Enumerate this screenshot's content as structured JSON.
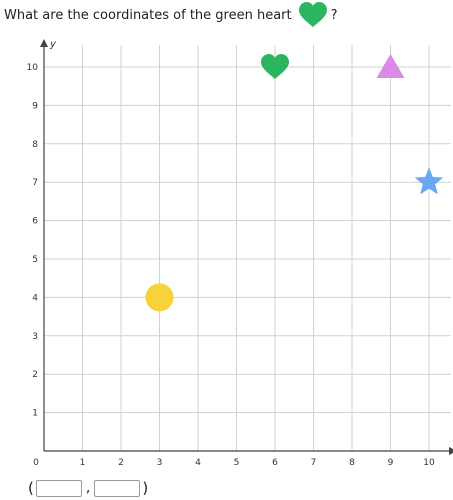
{
  "question": {
    "prefix": "What are the coordinates of the green heart",
    "suffix": "?",
    "icon": "green-heart-icon"
  },
  "chart_data": {
    "type": "scatter",
    "xlabel": "x",
    "ylabel": "y",
    "xlim": [
      0,
      10
    ],
    "ylim": [
      0,
      10
    ],
    "x_ticks": [
      "0",
      "1",
      "2",
      "3",
      "4",
      "5",
      "6",
      "7",
      "8",
      "9",
      "10"
    ],
    "y_ticks": [
      "1",
      "2",
      "3",
      "4",
      "5",
      "6",
      "7",
      "8",
      "9",
      "10"
    ],
    "grid": true,
    "points": [
      {
        "shape": "heart",
        "x": 6,
        "y": 10,
        "color": "#2bb55f"
      },
      {
        "shape": "triangle",
        "x": 9,
        "y": 10,
        "color": "#d98be6"
      },
      {
        "shape": "star",
        "x": 10,
        "y": 7,
        "color": "#6aa8ef"
      },
      {
        "shape": "circle",
        "x": 3,
        "y": 4,
        "color": "#f7d23a"
      }
    ]
  },
  "answer": {
    "open_paren": "(",
    "comma": ",",
    "close_paren": ")",
    "x_value": "",
    "y_value": ""
  }
}
